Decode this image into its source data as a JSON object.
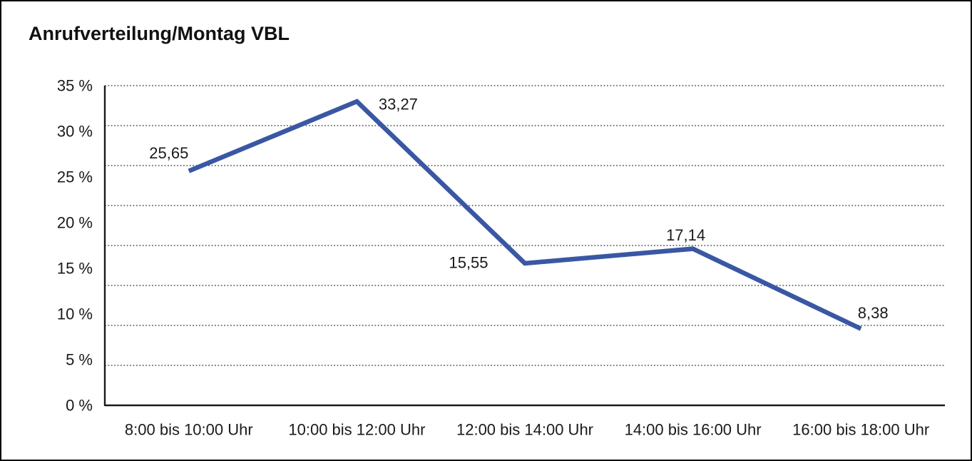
{
  "chart_data": {
    "type": "line",
    "title": "Anrufverteilung/Montag VBL",
    "categories": [
      "8:00 bis 10:00 Uhr",
      "10:00 bis 12:00 Uhr",
      "12:00 bis 14:00 Uhr",
      "14:00 bis 16:00 Uhr",
      "16:00 bis 18:00 Uhr"
    ],
    "values": [
      25.65,
      33.27,
      15.55,
      17.14,
      8.38
    ],
    "value_labels": [
      "25,65",
      "33,27",
      "15,55",
      "17,14",
      "8,38"
    ],
    "y_ticks": [
      "35 %",
      "30 %",
      "25 %",
      "20 %",
      "15 %",
      "10 %",
      "5 %",
      "0 %"
    ],
    "ylim": [
      0,
      35
    ],
    "xlabel": "",
    "ylabel": "",
    "grid": "horizontal-dotted",
    "legend": "none",
    "line_color": "#3A57A4",
    "axis_color": "#1a1a1a",
    "gridline_color": "#333333",
    "text_color": "#1a1a1a",
    "background": "#ffffff",
    "frame_border_color": "#000000"
  }
}
